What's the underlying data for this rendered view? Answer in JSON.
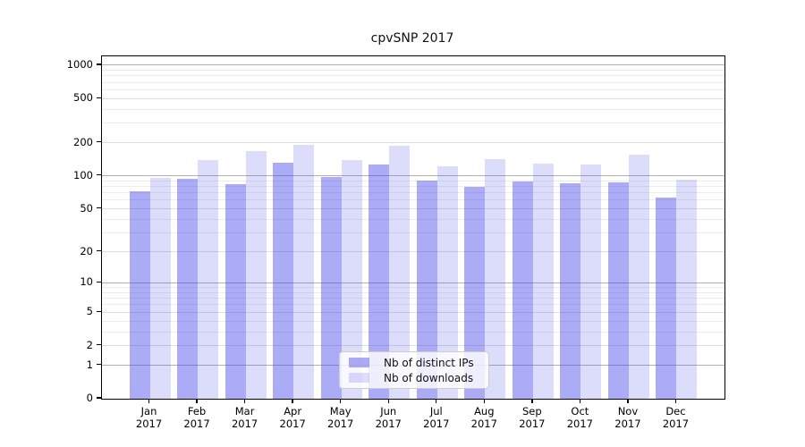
{
  "chart_data": {
    "type": "bar",
    "title": "cpvSNP 2017",
    "scale": "log1p",
    "categories": [
      "Jan",
      "Feb",
      "Mar",
      "Apr",
      "May",
      "Jun",
      "Jul",
      "Aug",
      "Sep",
      "Oct",
      "Nov",
      "Dec"
    ],
    "year_label": "2017",
    "series": [
      {
        "name": "Nb of distinct IPs",
        "color": "rgba(70,70,235,0.45)",
        "values": [
          73,
          94,
          84,
          131,
          98,
          126,
          91,
          80,
          89,
          85,
          88,
          64
        ]
      },
      {
        "name": "Nb of downloads",
        "color": "rgba(70,70,235,0.19)",
        "values": [
          95,
          138,
          167,
          190,
          138,
          188,
          122,
          142,
          129,
          128,
          156,
          92
        ]
      }
    ],
    "ylim": [
      0,
      1200
    ],
    "yticks": [
      0,
      1,
      2,
      5,
      10,
      20,
      50,
      100,
      200,
      500,
      1000
    ],
    "grid": {
      "major_values": [
        1,
        10,
        100,
        1000
      ],
      "mid_values": [
        2,
        5,
        20,
        50,
        200,
        500
      ],
      "minor_values": [
        3,
        4,
        6,
        7,
        8,
        9,
        30,
        40,
        60,
        70,
        80,
        90,
        300,
        400,
        600,
        700,
        800,
        900
      ],
      "major_color": "#b0b0b0",
      "mid_color": "#dedede",
      "minor_color": "#ececec"
    },
    "legend": {
      "position": "lower center"
    },
    "xlabel": "",
    "ylabel": ""
  }
}
